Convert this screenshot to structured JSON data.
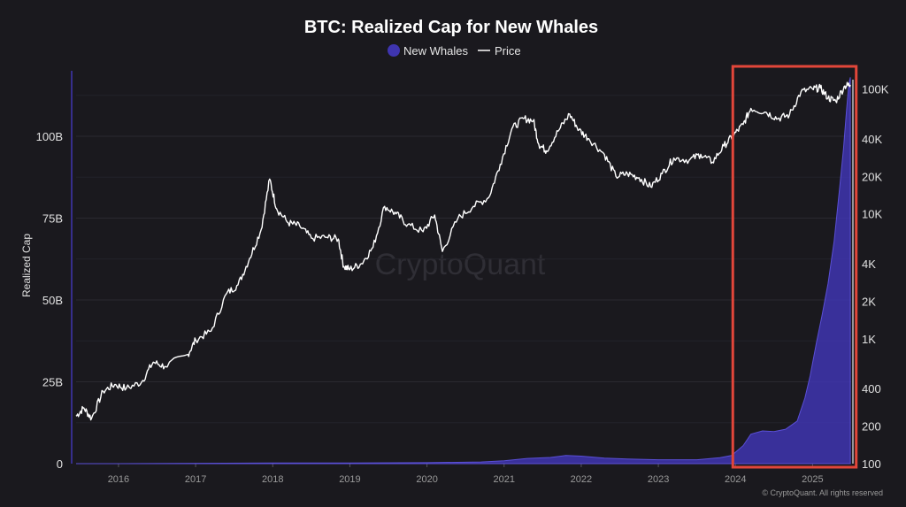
{
  "chart_data": {
    "type": "line",
    "title": "BTC: Realized Cap for New Whales",
    "ylabel": "Realized Cap",
    "ylim": [
      0,
      120
    ],
    "y_unit": "B",
    "y2_scale": "log",
    "y2lim": [
      100,
      140000
    ],
    "y_ticks": [
      {
        "value": 0,
        "label": "0"
      },
      {
        "value": 25,
        "label": "25B"
      },
      {
        "value": 50,
        "label": "50B"
      },
      {
        "value": 75,
        "label": "75B"
      },
      {
        "value": 100,
        "label": "100B"
      }
    ],
    "y2_ticks": [
      {
        "value": 100,
        "label": "100"
      },
      {
        "value": 200,
        "label": "200"
      },
      {
        "value": 400,
        "label": "400"
      },
      {
        "value": 1000,
        "label": "1K"
      },
      {
        "value": 2000,
        "label": "2K"
      },
      {
        "value": 4000,
        "label": "4K"
      },
      {
        "value": 10000,
        "label": "10K"
      },
      {
        "value": 20000,
        "label": "20K"
      },
      {
        "value": 40000,
        "label": "40K"
      },
      {
        "value": 100000,
        "label": "100K"
      }
    ],
    "xlim": [
      2015.45,
      2025.5
    ],
    "x_ticks": [
      {
        "value": 2016,
        "label": "2016"
      },
      {
        "value": 2017,
        "label": "2017"
      },
      {
        "value": 2018,
        "label": "2018"
      },
      {
        "value": 2019,
        "label": "2019"
      },
      {
        "value": 2020,
        "label": "2020"
      },
      {
        "value": 2021,
        "label": "2021"
      },
      {
        "value": 2022,
        "label": "2022"
      },
      {
        "value": 2023,
        "label": "2023"
      },
      {
        "value": 2024,
        "label": "2024"
      },
      {
        "value": 2025,
        "label": "2025"
      }
    ],
    "grid": true,
    "legend_position": "top-center",
    "series": [
      {
        "name": "New Whales",
        "type": "area",
        "axis": "left",
        "color": "#3f35b0",
        "points": [
          [
            2015.45,
            0.0
          ],
          [
            2016.0,
            0.0
          ],
          [
            2017.0,
            0.1
          ],
          [
            2018.0,
            0.2
          ],
          [
            2019.0,
            0.2
          ],
          [
            2020.0,
            0.3
          ],
          [
            2020.7,
            0.5
          ],
          [
            2021.0,
            0.9
          ],
          [
            2021.3,
            1.6
          ],
          [
            2021.6,
            1.9
          ],
          [
            2021.8,
            2.5
          ],
          [
            2022.0,
            2.3
          ],
          [
            2022.3,
            1.7
          ],
          [
            2022.6,
            1.4
          ],
          [
            2023.0,
            1.2
          ],
          [
            2023.5,
            1.2
          ],
          [
            2023.8,
            1.8
          ],
          [
            2023.95,
            2.5
          ],
          [
            2024.1,
            5.5
          ],
          [
            2024.2,
            9.0
          ],
          [
            2024.35,
            10.0
          ],
          [
            2024.5,
            9.8
          ],
          [
            2024.65,
            10.5
          ],
          [
            2024.8,
            13.0
          ],
          [
            2024.9,
            20.0
          ],
          [
            2024.97,
            27.0
          ],
          [
            2025.05,
            37.0
          ],
          [
            2025.12,
            45.0
          ],
          [
            2025.2,
            55.0
          ],
          [
            2025.28,
            68.0
          ],
          [
            2025.35,
            84.0
          ],
          [
            2025.4,
            96.0
          ],
          [
            2025.44,
            108.0
          ],
          [
            2025.47,
            116.0
          ],
          [
            2025.49,
            118.0
          ]
        ]
      },
      {
        "name": "Price",
        "type": "line",
        "axis": "right",
        "color": "#ffffff",
        "points": [
          [
            2015.45,
            240
          ],
          [
            2015.55,
            280
          ],
          [
            2015.65,
            230
          ],
          [
            2015.8,
            380
          ],
          [
            2015.95,
            430
          ],
          [
            2016.1,
            400
          ],
          [
            2016.3,
            450
          ],
          [
            2016.45,
            650
          ],
          [
            2016.6,
            600
          ],
          [
            2016.9,
            750
          ],
          [
            2017.0,
            980
          ],
          [
            2017.2,
            1150
          ],
          [
            2017.4,
            2300
          ],
          [
            2017.55,
            2700
          ],
          [
            2017.7,
            4400
          ],
          [
            2017.85,
            7500
          ],
          [
            2017.96,
            19000
          ],
          [
            2018.05,
            11000
          ],
          [
            2018.2,
            8500
          ],
          [
            2018.35,
            8000
          ],
          [
            2018.5,
            6400
          ],
          [
            2018.7,
            6500
          ],
          [
            2018.85,
            6300
          ],
          [
            2018.92,
            3800
          ],
          [
            2019.0,
            3600
          ],
          [
            2019.15,
            4000
          ],
          [
            2019.3,
            5400
          ],
          [
            2019.45,
            11500
          ],
          [
            2019.6,
            10000
          ],
          [
            2019.75,
            8200
          ],
          [
            2019.95,
            7200
          ],
          [
            2020.1,
            9800
          ],
          [
            2020.2,
            5000
          ],
          [
            2020.4,
            9200
          ],
          [
            2020.6,
            11500
          ],
          [
            2020.8,
            13500
          ],
          [
            2020.95,
            25000
          ],
          [
            2021.1,
            48000
          ],
          [
            2021.25,
            58000
          ],
          [
            2021.38,
            56000
          ],
          [
            2021.45,
            36000
          ],
          [
            2021.55,
            32000
          ],
          [
            2021.7,
            46000
          ],
          [
            2021.85,
            63000
          ],
          [
            2021.97,
            47000
          ],
          [
            2022.1,
            40000
          ],
          [
            2022.3,
            30000
          ],
          [
            2022.45,
            20000
          ],
          [
            2022.6,
            21000
          ],
          [
            2022.75,
            19500
          ],
          [
            2022.9,
            16500
          ],
          [
            2023.05,
            21000
          ],
          [
            2023.2,
            28000
          ],
          [
            2023.4,
            27000
          ],
          [
            2023.55,
            30000
          ],
          [
            2023.7,
            26000
          ],
          [
            2023.85,
            35000
          ],
          [
            2023.98,
            43000
          ],
          [
            2024.1,
            52000
          ],
          [
            2024.2,
            70000
          ],
          [
            2024.4,
            65000
          ],
          [
            2024.55,
            58000
          ],
          [
            2024.7,
            62000
          ],
          [
            2024.85,
            95000
          ],
          [
            2025.0,
            100000
          ],
          [
            2025.1,
            102000
          ],
          [
            2025.2,
            85000
          ],
          [
            2025.3,
            80000
          ],
          [
            2025.42,
            106000
          ],
          [
            2025.49,
            108000
          ]
        ]
      }
    ],
    "annotations": [
      {
        "type": "rectangle",
        "x_range": [
          2024.0,
          2025.52
        ],
        "color": "#e2463a"
      }
    ],
    "watermark": "CryptoQuant",
    "copyright": "© CryptoQuant. All rights reserved"
  }
}
